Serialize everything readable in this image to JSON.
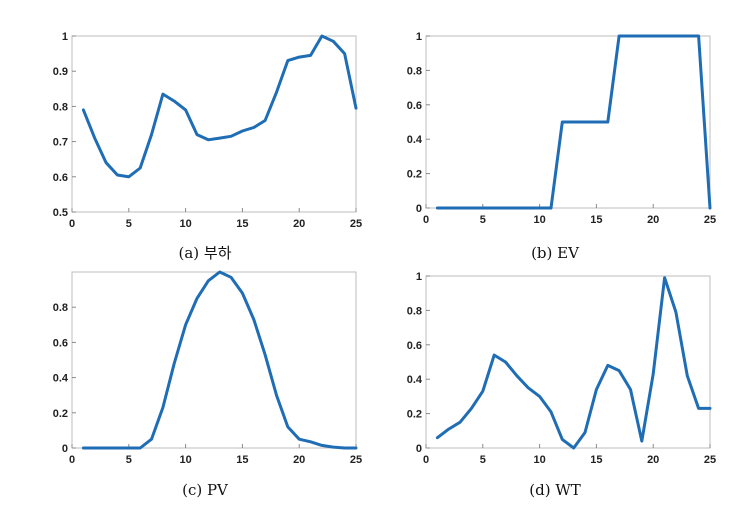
{
  "chart_data": [
    {
      "type": "line",
      "caption": "(a) 부하",
      "x": [
        1,
        2,
        3,
        4,
        5,
        6,
        7,
        8,
        9,
        10,
        11,
        12,
        13,
        14,
        15,
        16,
        17,
        18,
        19,
        20,
        21,
        22,
        23,
        24,
        25
      ],
      "values": [
        0.79,
        0.71,
        0.64,
        0.605,
        0.6,
        0.625,
        0.72,
        0.835,
        0.815,
        0.79,
        0.72,
        0.705,
        0.71,
        0.715,
        0.73,
        0.74,
        0.76,
        0.84,
        0.93,
        0.94,
        0.945,
        1.0,
        0.985,
        0.95,
        0.795
      ],
      "xlim": [
        0,
        25
      ],
      "ylim": [
        0.5,
        1.0
      ],
      "xticks": [
        "0",
        "5",
        "10",
        "15",
        "20",
        "25"
      ],
      "yticks": [
        "0.5",
        "0.6",
        "0.7",
        "0.8",
        "0.9",
        "1"
      ],
      "ytick_values": [
        0.5,
        0.6,
        0.7,
        0.8,
        0.9,
        1.0
      ],
      "xtick_values": [
        0,
        5,
        10,
        15,
        20,
        25
      ]
    },
    {
      "type": "line",
      "caption": "(b) EV",
      "x": [
        1,
        2,
        3,
        4,
        5,
        6,
        7,
        8,
        9,
        10,
        11,
        12,
        13,
        14,
        15,
        16,
        17,
        18,
        19,
        20,
        21,
        22,
        23,
        24,
        25
      ],
      "values": [
        0,
        0,
        0,
        0,
        0,
        0,
        0,
        0,
        0,
        0,
        0,
        0.5,
        0.5,
        0.5,
        0.5,
        0.5,
        1,
        1,
        1,
        1,
        1,
        1,
        1,
        1,
        0
      ],
      "xlim": [
        0,
        25
      ],
      "ylim": [
        0,
        1
      ],
      "xticks": [
        "0",
        "5",
        "10",
        "15",
        "20",
        "25"
      ],
      "yticks": [
        "0",
        "0.2",
        "0.4",
        "0.6",
        "0.8",
        "1"
      ],
      "ytick_values": [
        0,
        0.2,
        0.4,
        0.6,
        0.8,
        1.0
      ],
      "xtick_values": [
        0,
        5,
        10,
        15,
        20,
        25
      ]
    },
    {
      "type": "line",
      "caption": "(c) PV",
      "x": [
        1,
        2,
        3,
        4,
        5,
        6,
        7,
        8,
        9,
        10,
        11,
        12,
        13,
        14,
        15,
        16,
        17,
        18,
        19,
        20,
        21,
        22,
        23,
        24,
        25
      ],
      "values": [
        0,
        0,
        0,
        0,
        0,
        0,
        0.05,
        0.23,
        0.48,
        0.7,
        0.85,
        0.95,
        1.0,
        0.97,
        0.88,
        0.73,
        0.53,
        0.3,
        0.12,
        0.05,
        0.035,
        0.015,
        0.005,
        0,
        0
      ],
      "xlim": [
        0,
        25
      ],
      "ylim": [
        0,
        1
      ],
      "xticks": [
        "0",
        "5",
        "10",
        "15",
        "20",
        "25"
      ],
      "yticks": [
        "0",
        "0.2",
        "0.4",
        "0.6",
        "0.8"
      ],
      "ytick_values": [
        0,
        0.2,
        0.4,
        0.6,
        0.8
      ],
      "xtick_values": [
        0,
        5,
        10,
        15,
        20,
        25
      ]
    },
    {
      "type": "line",
      "caption": "(d) WT",
      "x": [
        1,
        2,
        3,
        4,
        5,
        6,
        7,
        8,
        9,
        10,
        11,
        12,
        13,
        14,
        15,
        16,
        17,
        18,
        19,
        20,
        21,
        22,
        23,
        24,
        25
      ],
      "values": [
        0.06,
        0.11,
        0.15,
        0.23,
        0.33,
        0.54,
        0.5,
        0.42,
        0.35,
        0.3,
        0.21,
        0.05,
        0.0,
        0.09,
        0.34,
        0.48,
        0.45,
        0.34,
        0.04,
        0.43,
        0.99,
        0.79,
        0.42,
        0.23,
        0.23
      ],
      "xlim": [
        0,
        25
      ],
      "ylim": [
        0,
        1
      ],
      "xticks": [
        "0",
        "5",
        "10",
        "15",
        "20",
        "25"
      ],
      "yticks": [
        "0",
        "0.2",
        "0.4",
        "0.6",
        "0.8",
        "1"
      ],
      "ytick_values": [
        0,
        0.2,
        0.4,
        0.6,
        0.8,
        1.0
      ],
      "xtick_values": [
        0,
        5,
        10,
        15,
        20,
        25
      ]
    }
  ],
  "colors": {
    "line": "#1f6db5",
    "frame": "#bdbdbd"
  }
}
